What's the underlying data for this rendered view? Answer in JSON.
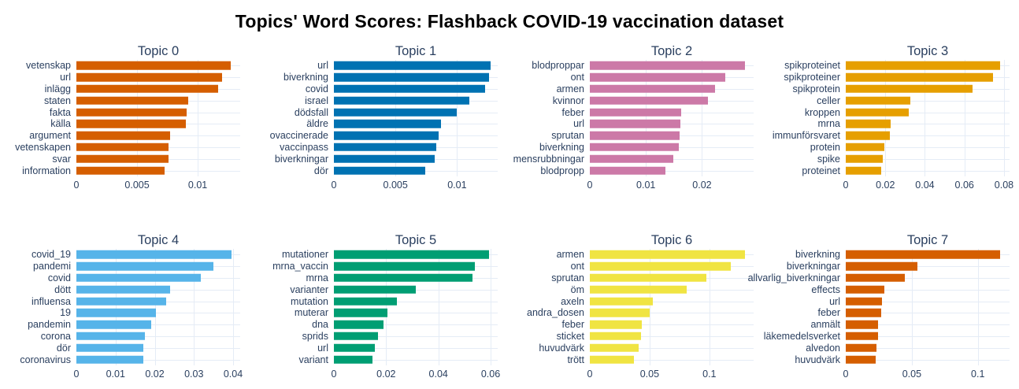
{
  "figure_title": "Topics' Word Scores: Flashback COVID-19 vaccination dataset",
  "theme": {
    "background": "#ffffff",
    "title_color": "#000000",
    "axis_text_color": "#2a3f5f",
    "grid_color": "#e5ecf6"
  },
  "chart_data": [
    {
      "type": "bar",
      "orientation": "horizontal",
      "title": "Topic 0",
      "bar_color": "#D55E00",
      "categories": [
        "vetenskap",
        "url",
        "inlägg",
        "staten",
        "fakta",
        "källa",
        "argument",
        "vetenskapen",
        "svar",
        "information"
      ],
      "values": [
        0.0127,
        0.012,
        0.0117,
        0.0092,
        0.0091,
        0.009,
        0.0077,
        0.0076,
        0.0076,
        0.0073
      ],
      "xticks": [
        0,
        0.005,
        0.01
      ],
      "xtick_labels": [
        "0",
        "0.005",
        "0.01"
      ],
      "xlim": [
        0,
        0.0135
      ],
      "grid": true
    },
    {
      "type": "bar",
      "orientation": "horizontal",
      "title": "Topic 1",
      "bar_color": "#0072B2",
      "categories": [
        "url",
        "biverkning",
        "covid",
        "israel",
        "dödsfall",
        "äldre",
        "ovaccinerade",
        "vaccinpass",
        "biverkningar",
        "dör"
      ],
      "values": [
        0.0127,
        0.0126,
        0.0123,
        0.011,
        0.01,
        0.0087,
        0.0085,
        0.0083,
        0.0082,
        0.0074
      ],
      "xticks": [
        0,
        0.005,
        0.01
      ],
      "xtick_labels": [
        "0",
        "0.005",
        "0.01"
      ],
      "xlim": [
        0,
        0.0133
      ],
      "grid": true
    },
    {
      "type": "bar",
      "orientation": "horizontal",
      "title": "Topic 2",
      "bar_color": "#CC79A7",
      "categories": [
        "blodproppar",
        "ont",
        "armen",
        "kvinnor",
        "feber",
        "url",
        "sprutan",
        "biverkning",
        "mensrubbningar",
        "blodpropp"
      ],
      "values": [
        0.0276,
        0.0242,
        0.0223,
        0.021,
        0.0163,
        0.0162,
        0.016,
        0.0158,
        0.0149,
        0.0135
      ],
      "xticks": [
        0,
        0.01,
        0.02
      ],
      "xtick_labels": [
        "0",
        "0.01",
        "0.02"
      ],
      "xlim": [
        0,
        0.0292
      ],
      "grid": true
    },
    {
      "type": "bar",
      "orientation": "horizontal",
      "title": "Topic 3",
      "bar_color": "#E69F00",
      "categories": [
        "spikproteinet",
        "spikproteiner",
        "spikprotein",
        "celler",
        "kroppen",
        "mrna",
        "immunförsvaret",
        "protein",
        "spike",
        "proteinet"
      ],
      "values": [
        0.0781,
        0.0744,
        0.064,
        0.0328,
        0.0319,
        0.0228,
        0.0221,
        0.0197,
        0.0187,
        0.018
      ],
      "xticks": [
        0,
        0.02,
        0.04,
        0.06,
        0.08
      ],
      "xtick_labels": [
        "0",
        "0.02",
        "0.04",
        "0.06",
        "0.08"
      ],
      "xlim": [
        0,
        0.0828
      ],
      "grid": true
    },
    {
      "type": "bar",
      "orientation": "horizontal",
      "title": "Topic 4",
      "bar_color": "#56B4E9",
      "categories": [
        "covid_19",
        "pandemi",
        "covid",
        "dött",
        "influensa",
        "19",
        "pandemin",
        "corona",
        "dör",
        "coronavirus"
      ],
      "values": [
        0.0395,
        0.035,
        0.0318,
        0.0239,
        0.023,
        0.0203,
        0.019,
        0.0174,
        0.0171,
        0.017
      ],
      "xticks": [
        0,
        0.01,
        0.02,
        0.03,
        0.04
      ],
      "xtick_labels": [
        "0",
        "0.01",
        "0.02",
        "0.03",
        "0.04"
      ],
      "xlim": [
        0,
        0.0418
      ],
      "grid": true
    },
    {
      "type": "bar",
      "orientation": "horizontal",
      "title": "Topic 5",
      "bar_color": "#009E73",
      "categories": [
        "mutationer",
        "mrna_vaccin",
        "mrna",
        "varianter",
        "mutation",
        "muterar",
        "dna",
        "sprids",
        "url",
        "variant"
      ],
      "values": [
        0.0594,
        0.0539,
        0.053,
        0.0312,
        0.0242,
        0.0206,
        0.019,
        0.017,
        0.0157,
        0.0148
      ],
      "xticks": [
        0,
        0.02,
        0.04,
        0.06
      ],
      "xtick_labels": [
        "0",
        "0.02",
        "0.04",
        "0.06"
      ],
      "xlim": [
        0,
        0.0627
      ],
      "grid": true
    },
    {
      "type": "bar",
      "orientation": "horizontal",
      "title": "Topic 6",
      "bar_color": "#F0E442",
      "categories": [
        "armen",
        "ont",
        "sprutan",
        "öm",
        "axeln",
        "andra_dosen",
        "feber",
        "sticket",
        "huvudvärk",
        "trött"
      ],
      "values": [
        0.13,
        0.118,
        0.0974,
        0.0808,
        0.053,
        0.0503,
        0.0437,
        0.043,
        0.041,
        0.0371
      ],
      "xticks": [
        0,
        0.05,
        0.1
      ],
      "xtick_labels": [
        "0",
        "0.05",
        "0.1"
      ],
      "xlim": [
        0,
        0.137
      ],
      "grid": true
    },
    {
      "type": "bar",
      "orientation": "horizontal",
      "title": "Topic 7",
      "bar_color": "#D55E00",
      "categories": [
        "biverkning",
        "biverkningar",
        "allvarlig_biverkningar",
        "effects",
        "url",
        "feber",
        "anmält",
        "läkemedelsverket",
        "alvedon",
        "huvudvärk"
      ],
      "values": [
        0.1168,
        0.0545,
        0.0449,
        0.0293,
        0.0275,
        0.027,
        0.0246,
        0.0246,
        0.0234,
        0.0228
      ],
      "xticks": [
        0,
        0.05,
        0.1
      ],
      "xtick_labels": [
        "0",
        "0.05",
        "0.1"
      ],
      "xlim": [
        0,
        0.124
      ],
      "grid": true
    }
  ]
}
